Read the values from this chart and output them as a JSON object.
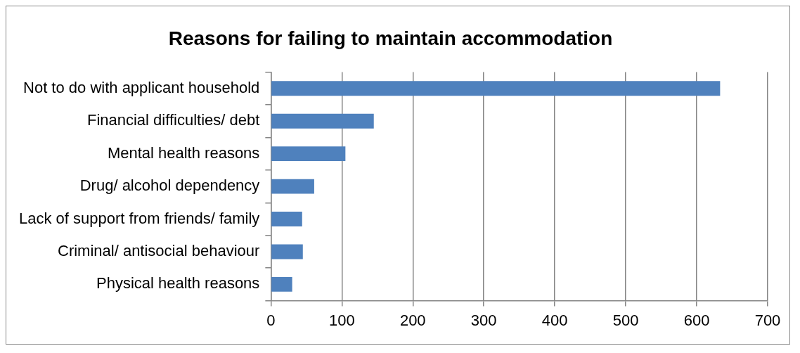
{
  "chart_data": {
    "type": "bar",
    "orientation": "horizontal",
    "title": "Reasons for failing to maintain accommodation",
    "categories": [
      "Not to do with applicant household",
      "Financial difficulties/ debt",
      "Mental health reasons",
      "Drug/ alcohol dependency",
      "Lack of support from friends/ family",
      "Criminal/ antisocial behaviour",
      "Physical health reasons"
    ],
    "values": [
      633,
      145,
      105,
      61,
      44,
      45,
      30
    ],
    "color": "#4f81bd",
    "xlim": [
      0,
      700
    ],
    "xticks": [
      0,
      100,
      200,
      300,
      400,
      500,
      600,
      700
    ],
    "grid": "x",
    "legend": false
  }
}
